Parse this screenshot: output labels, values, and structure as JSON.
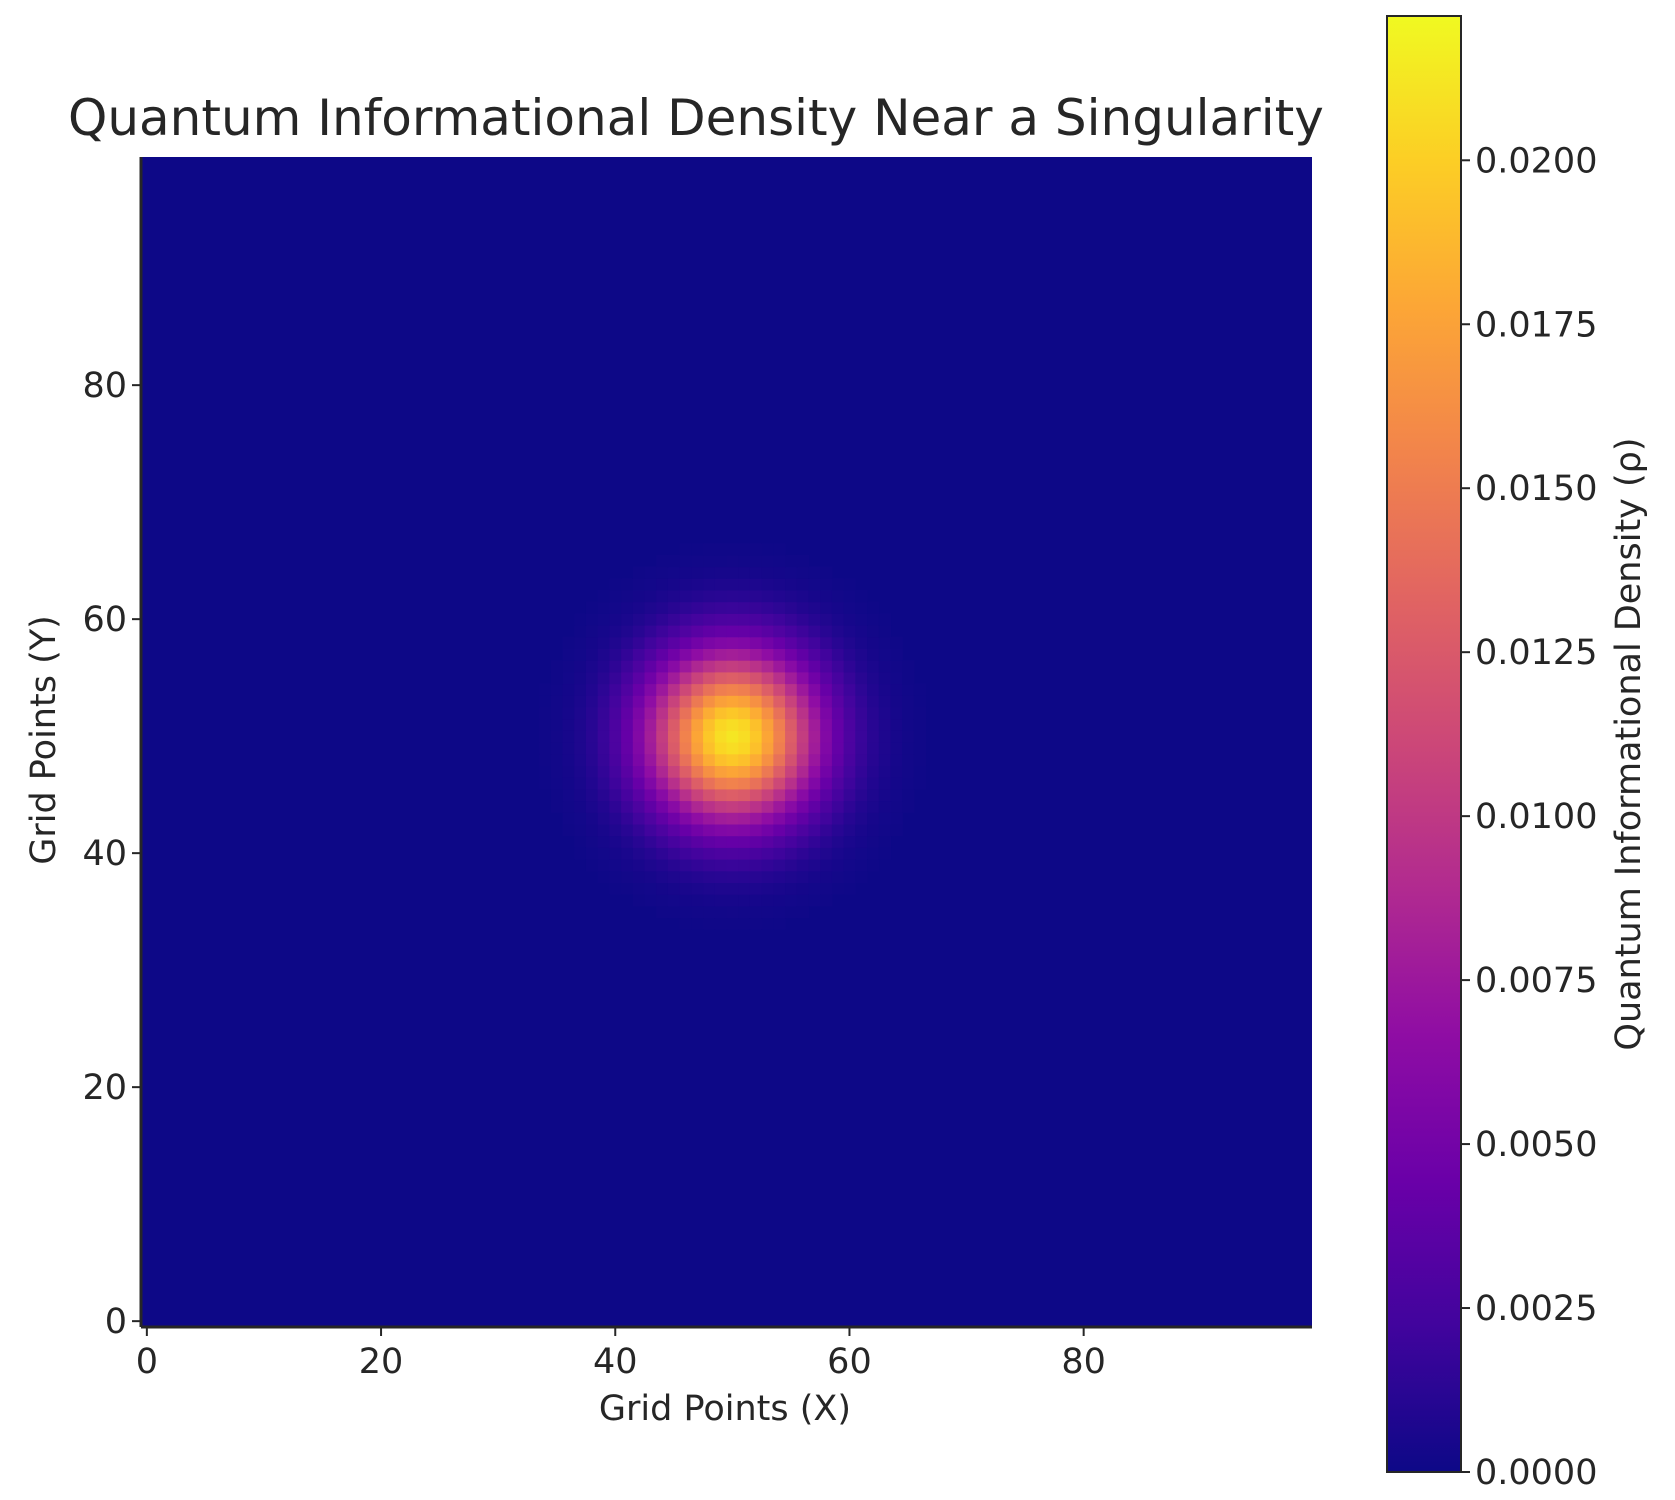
{
  "chart_data": {
    "type": "heatmap",
    "title": "Quantum Informational Density Near a Singularity",
    "xlabel": "Grid Points (X)",
    "ylabel": "Grid Points (Y)",
    "grid_size": [
      100,
      100
    ],
    "xlim": [
      0,
      99
    ],
    "ylim": [
      0,
      99
    ],
    "x_ticks": [
      0,
      20,
      40,
      60,
      80
    ],
    "y_ticks": [
      0,
      20,
      40,
      60,
      80
    ],
    "origin": "lower",
    "colormap": "plasma",
    "peak": {
      "x": 50,
      "y": 50,
      "value": 0.0212
    },
    "sigma": 5,
    "colorbar": {
      "label": "Quantum Informational Density (ρ)",
      "range": [
        0.0,
        0.0222
      ],
      "ticks": [
        0.0,
        0.0025,
        0.005,
        0.0075,
        0.01,
        0.0125,
        0.015,
        0.0175,
        0.02
      ],
      "tick_labels": [
        "0.0000",
        "0.0025",
        "0.0050",
        "0.0075",
        "0.0100",
        "0.0125",
        "0.0150",
        "0.0175",
        "0.0200"
      ]
    },
    "grid": false
  }
}
